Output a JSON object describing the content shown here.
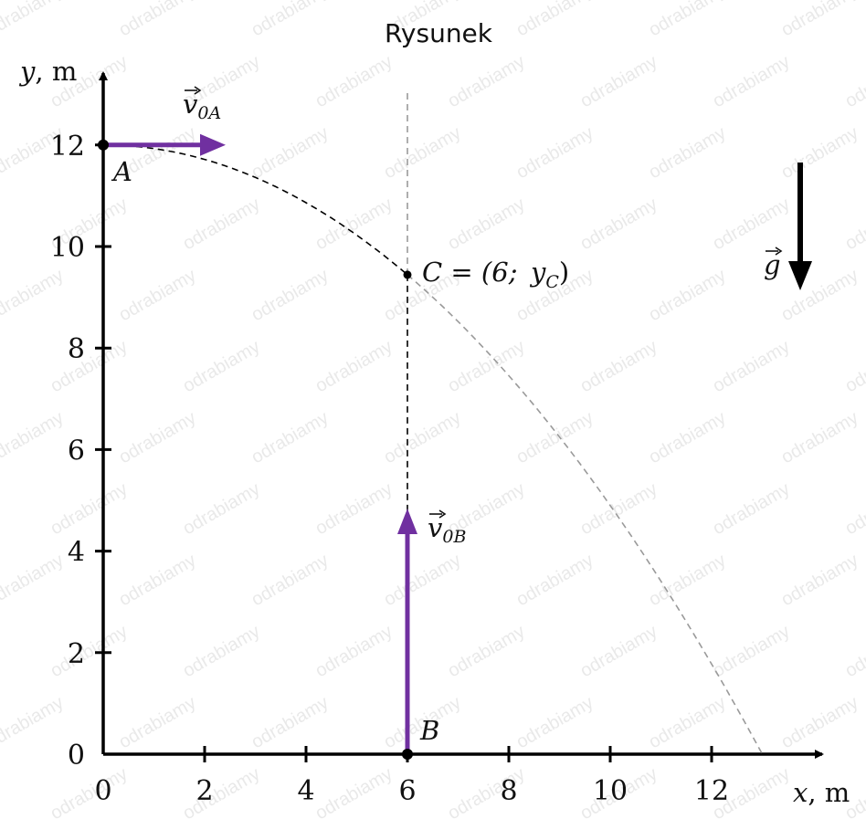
{
  "title": "Rysunek",
  "watermark_text": "odrabiamy",
  "axes": {
    "x_label_var": "x",
    "x_label_unit": ", m",
    "y_label_var": "y",
    "y_label_unit": ", m",
    "x_range": [
      0,
      14
    ],
    "y_range": [
      0,
      13
    ],
    "x_ticks": [
      "0",
      "2",
      "4",
      "6",
      "8",
      "10",
      "12"
    ],
    "y_ticks": [
      "0",
      "2",
      "4",
      "6",
      "8",
      "10",
      "12"
    ]
  },
  "points": {
    "A": {
      "label": "A",
      "x": 0,
      "y": 12
    },
    "B": {
      "label": "B",
      "x": 6,
      "y": 0
    },
    "C": {
      "label_text": "C = (6; y",
      "label_sub": "C",
      "label_end": ")",
      "x": 6,
      "y": 9.2
    }
  },
  "vectors": {
    "v0A": {
      "base": "v",
      "sub": "0A",
      "color": "#7030a0"
    },
    "v0B": {
      "base": "v",
      "sub": "0B",
      "color": "#7030a0"
    },
    "g": {
      "base": "g",
      "color": "#000000"
    }
  },
  "trajectory": {
    "apex_y": 12,
    "landing_x": 13
  }
}
